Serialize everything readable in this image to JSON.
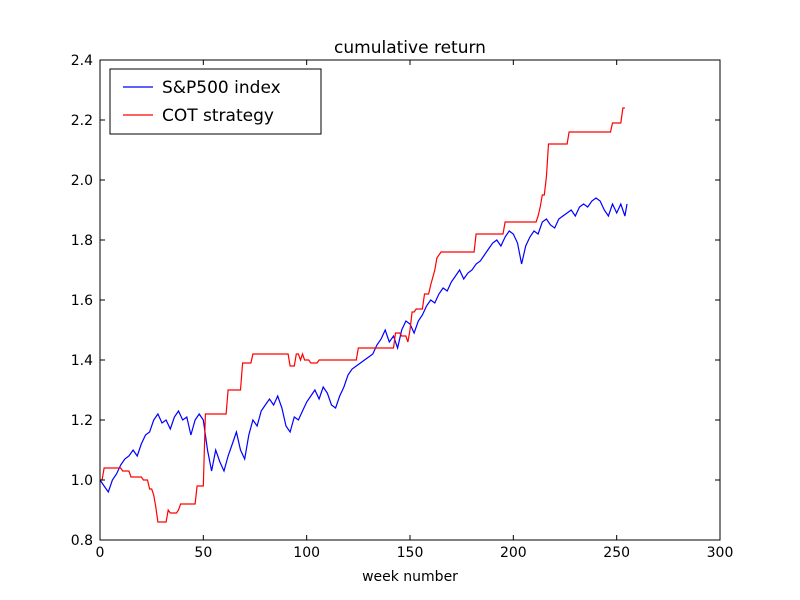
{
  "chart_data": {
    "type": "line",
    "title": "cumulative return",
    "xlabel": "week number",
    "ylabel": "",
    "xlim": [
      0,
      300
    ],
    "ylim": [
      0.8,
      2.4
    ],
    "xticks": [
      "0",
      "50",
      "100",
      "150",
      "200",
      "250",
      "300"
    ],
    "yticks": [
      "0.8",
      "1.0",
      "1.2",
      "1.4",
      "1.6",
      "1.8",
      "2.0",
      "2.2",
      "2.4"
    ],
    "grid": false,
    "legend_position": "top-left",
    "series": [
      {
        "name": "S&P500 index",
        "color": "#0000ff",
        "x": [
          0,
          2,
          4,
          6,
          8,
          10,
          12,
          14,
          16,
          18,
          20,
          22,
          24,
          26,
          28,
          30,
          32,
          34,
          36,
          38,
          40,
          42,
          44,
          46,
          48,
          50,
          52,
          54,
          56,
          58,
          60,
          62,
          64,
          66,
          68,
          70,
          72,
          74,
          76,
          78,
          80,
          82,
          84,
          86,
          88,
          90,
          92,
          94,
          96,
          98,
          100,
          102,
          104,
          106,
          108,
          110,
          112,
          114,
          116,
          118,
          120,
          122,
          124,
          126,
          128,
          130,
          132,
          134,
          136,
          138,
          140,
          142,
          144,
          146,
          148,
          150,
          152,
          154,
          156,
          158,
          160,
          162,
          164,
          166,
          168,
          170,
          172,
          174,
          176,
          178,
          180,
          182,
          184,
          186,
          188,
          190,
          192,
          194,
          196,
          198,
          200,
          202,
          204,
          206,
          208,
          210,
          212,
          214,
          216,
          218,
          220,
          222,
          224,
          226,
          228,
          230,
          232,
          234,
          236,
          238,
          240,
          242,
          244,
          246,
          248,
          250,
          252,
          254,
          255
        ],
        "y": [
          1.0,
          0.98,
          0.96,
          1.0,
          1.02,
          1.05,
          1.07,
          1.08,
          1.1,
          1.08,
          1.12,
          1.15,
          1.16,
          1.2,
          1.22,
          1.19,
          1.2,
          1.17,
          1.21,
          1.23,
          1.2,
          1.21,
          1.15,
          1.2,
          1.22,
          1.2,
          1.1,
          1.03,
          1.1,
          1.06,
          1.03,
          1.08,
          1.12,
          1.16,
          1.1,
          1.07,
          1.15,
          1.2,
          1.18,
          1.23,
          1.25,
          1.27,
          1.25,
          1.28,
          1.24,
          1.18,
          1.16,
          1.21,
          1.2,
          1.23,
          1.26,
          1.28,
          1.3,
          1.27,
          1.31,
          1.29,
          1.25,
          1.24,
          1.28,
          1.31,
          1.35,
          1.37,
          1.38,
          1.39,
          1.4,
          1.41,
          1.42,
          1.45,
          1.47,
          1.5,
          1.46,
          1.48,
          1.44,
          1.5,
          1.53,
          1.52,
          1.49,
          1.53,
          1.55,
          1.58,
          1.6,
          1.59,
          1.62,
          1.64,
          1.63,
          1.66,
          1.68,
          1.7,
          1.67,
          1.69,
          1.7,
          1.72,
          1.73,
          1.75,
          1.77,
          1.79,
          1.8,
          1.78,
          1.81,
          1.83,
          1.82,
          1.79,
          1.72,
          1.78,
          1.81,
          1.83,
          1.82,
          1.86,
          1.87,
          1.85,
          1.84,
          1.87,
          1.88,
          1.89,
          1.9,
          1.88,
          1.91,
          1.92,
          1.91,
          1.93,
          1.94,
          1.93,
          1.9,
          1.88,
          1.92,
          1.89,
          1.92,
          1.88,
          1.92
        ]
      },
      {
        "name": "COT strategy",
        "color": "#ff0000",
        "x": [
          0,
          1,
          2,
          3,
          10,
          11,
          14,
          15,
          20,
          21,
          23,
          24,
          25,
          26,
          27,
          28,
          29,
          30,
          31,
          32,
          33,
          34,
          35,
          37,
          38,
          39,
          46,
          47,
          50,
          51,
          61,
          62,
          68,
          69,
          73,
          74,
          91,
          92,
          94,
          95,
          96,
          97,
          98,
          99,
          101,
          102,
          105,
          106,
          113,
          114,
          124,
          125,
          142,
          143,
          145,
          146,
          148,
          149,
          150,
          151,
          152,
          153,
          156,
          157,
          159,
          160,
          162,
          163,
          165,
          166,
          181,
          182,
          195,
          196,
          211,
          212,
          213,
          214,
          215,
          216,
          217,
          218,
          226,
          227,
          247,
          248,
          252,
          253,
          254
        ],
        "y": [
          1.0,
          1.0,
          1.04,
          1.04,
          1.04,
          1.03,
          1.03,
          1.01,
          1.01,
          1.0,
          1.0,
          0.97,
          0.97,
          0.95,
          0.91,
          0.86,
          0.86,
          0.86,
          0.86,
          0.86,
          0.9,
          0.89,
          0.89,
          0.89,
          0.9,
          0.92,
          0.92,
          0.98,
          0.98,
          1.22,
          1.22,
          1.3,
          1.3,
          1.39,
          1.39,
          1.42,
          1.42,
          1.38,
          1.38,
          1.42,
          1.42,
          1.4,
          1.42,
          1.4,
          1.4,
          1.39,
          1.39,
          1.4,
          1.4,
          1.4,
          1.4,
          1.44,
          1.44,
          1.49,
          1.49,
          1.48,
          1.48,
          1.46,
          1.5,
          1.56,
          1.56,
          1.57,
          1.57,
          1.62,
          1.62,
          1.65,
          1.7,
          1.74,
          1.76,
          1.76,
          1.76,
          1.82,
          1.82,
          1.86,
          1.86,
          1.88,
          1.91,
          1.95,
          1.95,
          2.01,
          2.12,
          2.12,
          2.12,
          2.16,
          2.16,
          2.19,
          2.19,
          2.24,
          2.24
        ]
      }
    ]
  }
}
